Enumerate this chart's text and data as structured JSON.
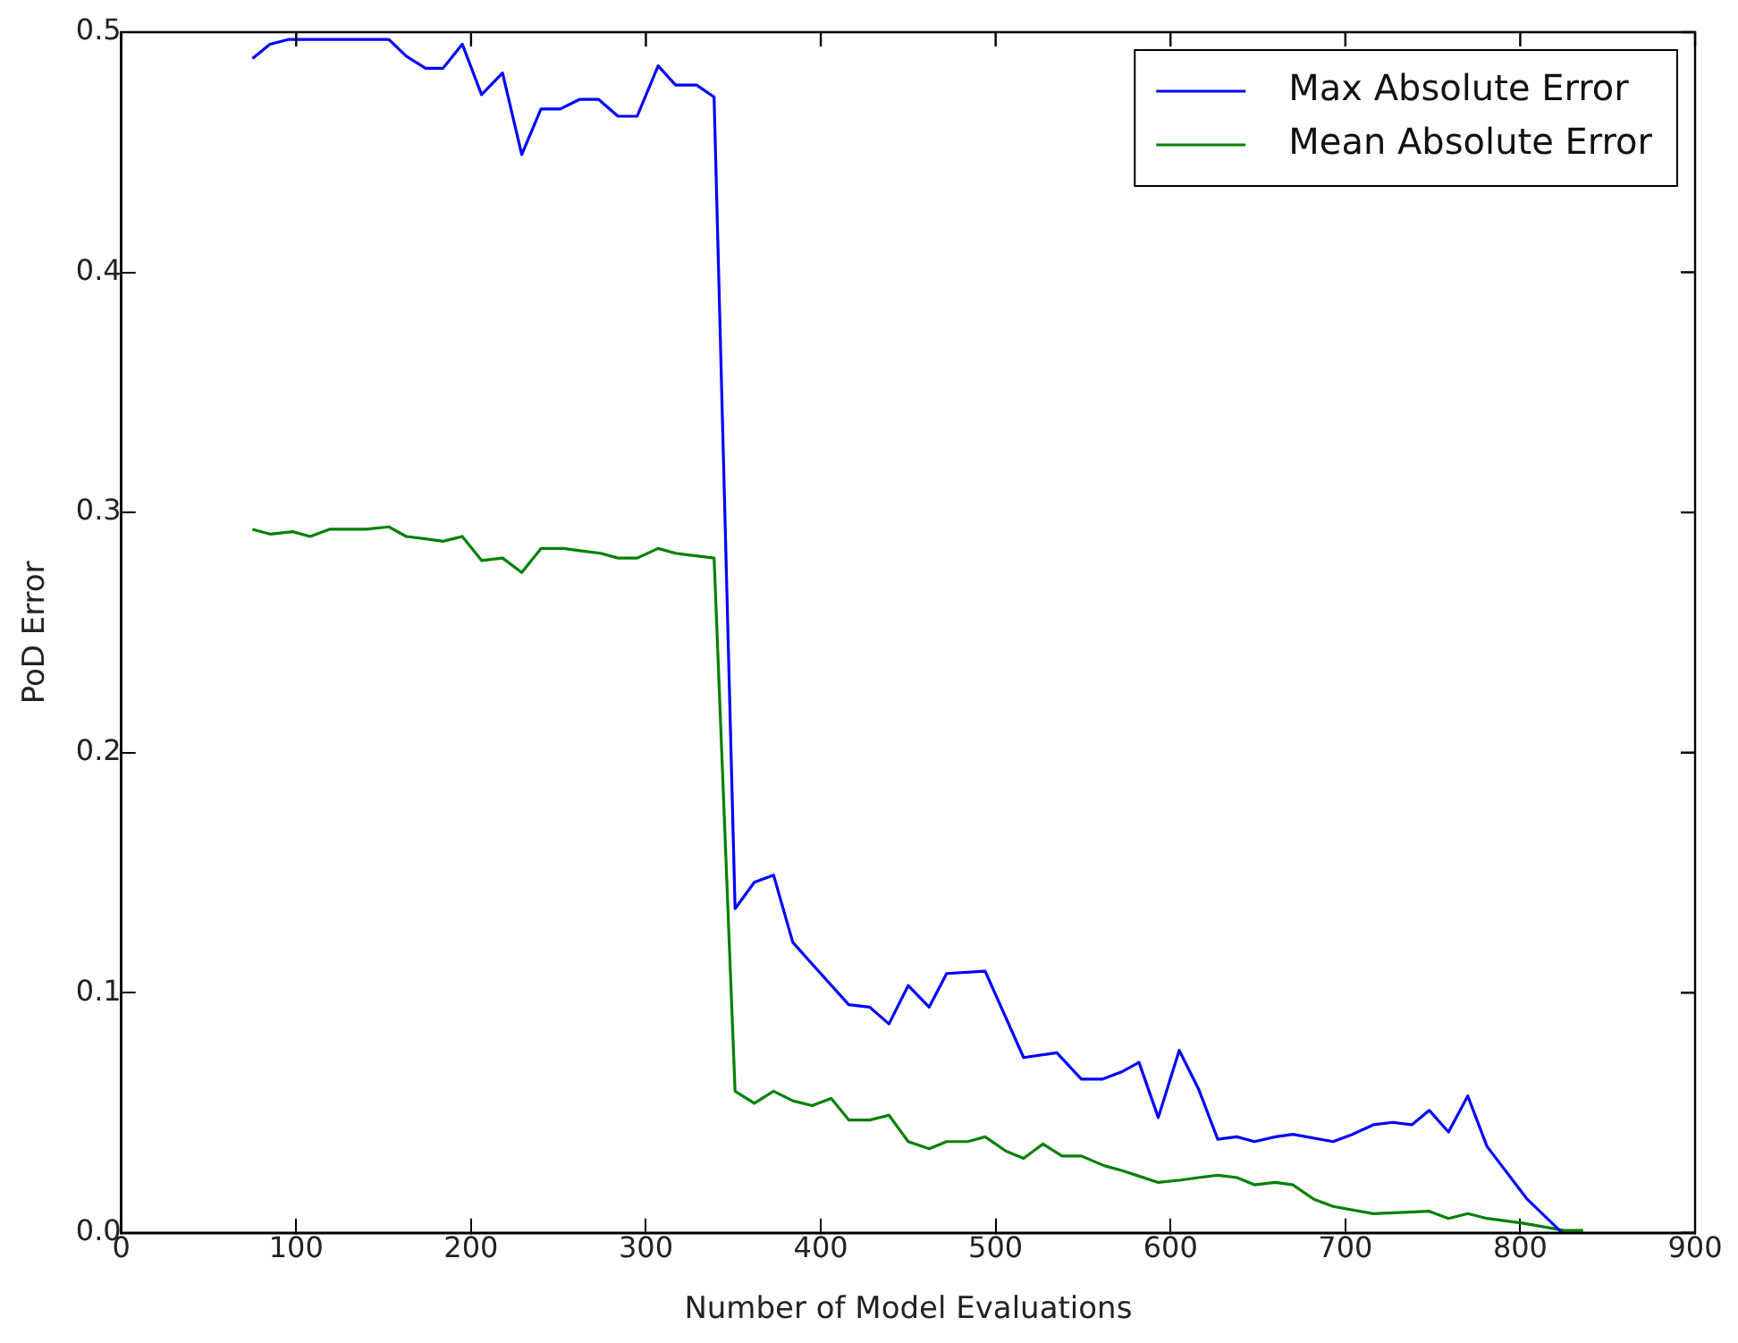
{
  "chart_data": {
    "type": "line",
    "xlabel": "Number of Model Evaluations",
    "ylabel": "PoD Error",
    "xlim": [
      0,
      900
    ],
    "xticks": [
      0,
      100,
      200,
      300,
      400,
      500,
      600,
      700,
      800,
      900
    ],
    "ylim": [
      0,
      0.5
    ],
    "yticks": [
      {
        "value": 0,
        "label": "0.0"
      },
      0.1,
      0.2,
      0.3,
      0.4,
      0.5
    ],
    "grid": false,
    "legend": "top right",
    "marker": "none",
    "line_style": "solid",
    "series": [
      {
        "name": "Max Absolute Error",
        "color": "#0000ff",
        "x": [
          75,
          85,
          96,
          108,
          118,
          128,
          142,
          153,
          163,
          174,
          184,
          195,
          206,
          218,
          229,
          240,
          251,
          262,
          273,
          284,
          295,
          307,
          317,
          329,
          339,
          351,
          362,
          373,
          384,
          395,
          416,
          428,
          439,
          450,
          462,
          472,
          494,
          516,
          535,
          549,
          561,
          572,
          582,
          593,
          605,
          616,
          627,
          638,
          648,
          660,
          670,
          693,
          704,
          716,
          727,
          738,
          748,
          759,
          770,
          781,
          804,
          824
        ],
        "values": [
          0.489,
          0.495,
          0.497,
          0.497,
          0.497,
          0.497,
          0.497,
          0.497,
          0.49,
          0.485,
          0.485,
          0.495,
          0.474,
          0.483,
          0.449,
          0.468,
          0.468,
          0.472,
          0.472,
          0.465,
          0.465,
          0.486,
          0.478,
          0.478,
          0.473,
          0.135,
          0.146,
          0.149,
          0.121,
          0.112,
          0.095,
          0.094,
          0.087,
          0.103,
          0.094,
          0.108,
          0.109,
          0.073,
          0.075,
          0.064,
          0.064,
          0.067,
          0.071,
          0.048,
          0.076,
          0.06,
          0.039,
          0.04,
          0.038,
          0.04,
          0.041,
          0.038,
          0.041,
          0.045,
          0.046,
          0.045,
          0.051,
          0.042,
          0.057,
          0.036,
          0.014,
          0
        ]
      },
      {
        "name": "Mean Absolute Error",
        "color": "#008000",
        "x": [
          75,
          85,
          98,
          108,
          119,
          130,
          140,
          153,
          163,
          174,
          184,
          195,
          206,
          218,
          229,
          240,
          253,
          263,
          274,
          284,
          295,
          307,
          317,
          339,
          351,
          362,
          373,
          384,
          395,
          406,
          416,
          428,
          439,
          450,
          462,
          472,
          484,
          494,
          506,
          516,
          527,
          538,
          549,
          562,
          572,
          593,
          606,
          616,
          627,
          638,
          648,
          660,
          670,
          682,
          693,
          716,
          748,
          759,
          770,
          781,
          802,
          825,
          836
        ],
        "values": [
          0.293,
          0.291,
          0.292,
          0.29,
          0.293,
          0.293,
          0.293,
          0.294,
          0.29,
          0.289,
          0.288,
          0.29,
          0.28,
          0.281,
          0.275,
          0.285,
          0.285,
          0.284,
          0.283,
          0.281,
          0.281,
          0.285,
          0.283,
          0.281,
          0.059,
          0.054,
          0.059,
          0.055,
          0.053,
          0.056,
          0.047,
          0.047,
          0.049,
          0.038,
          0.035,
          0.038,
          0.038,
          0.04,
          0.034,
          0.031,
          0.037,
          0.032,
          0.032,
          0.028,
          0.026,
          0.021,
          0.022,
          0.023,
          0.024,
          0.023,
          0.02,
          0.021,
          0.02,
          0.014,
          0.011,
          0.008,
          0.009,
          0.006,
          0.008,
          0.006,
          0.004,
          0.001,
          0.001
        ]
      }
    ]
  }
}
